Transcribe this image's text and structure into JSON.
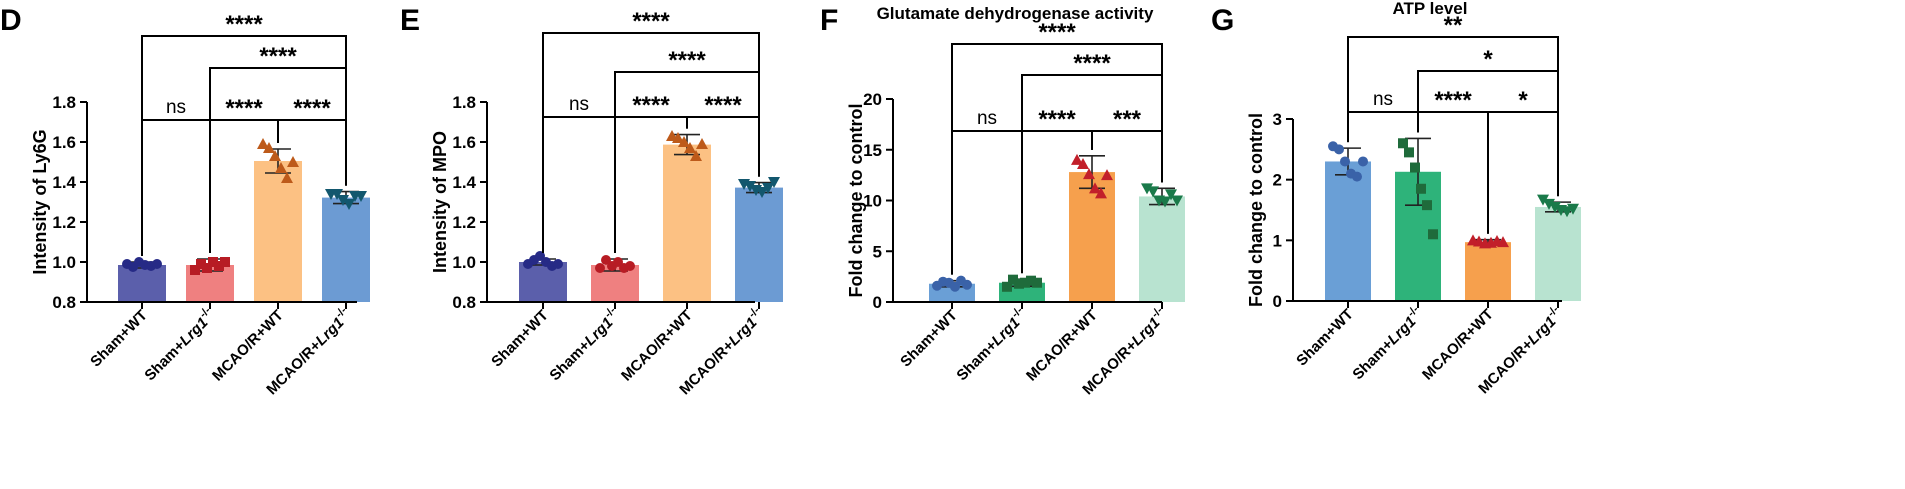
{
  "figure": {
    "panels": [
      "D",
      "E",
      "F",
      "G"
    ]
  },
  "chart_data": [
    {
      "panel": "D",
      "type": "bar",
      "title": "",
      "ylabel": "Intensity of Ly6G",
      "ylim": [
        0.8,
        1.8
      ],
      "yticks": [
        "0.8",
        "1.0",
        "1.2",
        "1.4",
        "1.6",
        "1.8"
      ],
      "categories": [
        {
          "main": "Sham+WT",
          "gene": "",
          "sup": ""
        },
        {
          "main": "Sham+",
          "gene": "Lrg1",
          "sup": "-/-"
        },
        {
          "main": "MCAO/R+WT",
          "gene": "",
          "sup": ""
        },
        {
          "main": "MCAO/R+",
          "gene": "Lrg1",
          "sup": "-/-"
        }
      ],
      "values": [
        0.985,
        0.985,
        1.505,
        1.322
      ],
      "errors": [
        0.015,
        0.03,
        0.06,
        0.03
      ],
      "bar_colors": [
        "#5b5fab",
        "#ef8080",
        "#fcc183",
        "#6c9bd3"
      ],
      "point_colors": [
        "#262a86",
        "#b71c24",
        "#bd5a1a",
        "#12576e"
      ],
      "markers": [
        "circle",
        "square",
        "triangle-up",
        "triangle-down"
      ],
      "points": [
        [
          0.99,
          0.975,
          1.0,
          0.985,
          0.98,
          0.99
        ],
        [
          0.96,
          0.99,
          0.97,
          1.0,
          0.98,
          1.0
        ],
        [
          1.59,
          1.57,
          1.53,
          1.47,
          1.42,
          1.5
        ],
        [
          1.34,
          1.34,
          1.31,
          1.29,
          1.33,
          1.33
        ]
      ],
      "comparisons": [
        {
          "from": 0,
          "to": 3,
          "label": "****"
        },
        {
          "from": 1,
          "to": 3,
          "label": "****"
        },
        {
          "from": 0,
          "to": 1,
          "label": "ns"
        },
        {
          "from": 1,
          "to": 2,
          "label": "****"
        },
        {
          "from": 2,
          "to": 3,
          "label": "****"
        }
      ]
    },
    {
      "panel": "E",
      "type": "bar",
      "title": "",
      "ylabel": "Intensity of MPO",
      "ylim": [
        0.8,
        1.8
      ],
      "yticks": [
        "0.8",
        "1.0",
        "1.2",
        "1.4",
        "1.6",
        "1.8"
      ],
      "categories": [
        {
          "main": "Sham+WT",
          "gene": "",
          "sup": ""
        },
        {
          "main": "Sham+",
          "gene": "Lrg1",
          "sup": "-/-"
        },
        {
          "main": "MCAO/R+WT",
          "gene": "",
          "sup": ""
        },
        {
          "main": "MCAO/R+",
          "gene": "Lrg1",
          "sup": "-/-"
        }
      ],
      "values": [
        1.0,
        0.985,
        1.587,
        1.372
      ],
      "errors": [
        0.015,
        0.03,
        0.05,
        0.025
      ],
      "bar_colors": [
        "#5b5fab",
        "#ef8080",
        "#fcc183",
        "#6c9bd3"
      ],
      "point_colors": [
        "#262a86",
        "#b71c24",
        "#bd5a1a",
        "#12576e"
      ],
      "markers": [
        "circle",
        "circle",
        "triangle-up",
        "triangle-down"
      ],
      "points": [
        [
          0.99,
          1.01,
          1.03,
          1.0,
          0.98,
          0.99
        ],
        [
          0.97,
          1.01,
          0.98,
          1.0,
          0.97,
          0.98
        ],
        [
          1.63,
          1.62,
          1.6,
          1.57,
          1.53,
          1.59
        ],
        [
          1.39,
          1.38,
          1.36,
          1.35,
          1.37,
          1.4
        ]
      ],
      "comparisons": [
        {
          "from": 0,
          "to": 3,
          "label": "****"
        },
        {
          "from": 1,
          "to": 3,
          "label": "****"
        },
        {
          "from": 0,
          "to": 1,
          "label": "ns"
        },
        {
          "from": 1,
          "to": 2,
          "label": "****"
        },
        {
          "from": 2,
          "to": 3,
          "label": "****"
        }
      ]
    },
    {
      "panel": "F",
      "type": "bar",
      "title": "Glutamate dehydrogenase activity",
      "ylabel": "Fold change to control",
      "ylim": [
        0,
        20
      ],
      "yticks": [
        "0",
        "5",
        "10",
        "15",
        "20"
      ],
      "categories": [
        {
          "main": "Sham+WT",
          "gene": "",
          "sup": ""
        },
        {
          "main": "Sham+",
          "gene": "Lrg1",
          "sup": "-/-"
        },
        {
          "main": "MCAO/R+WT",
          "gene": "",
          "sup": ""
        },
        {
          "main": "MCAO/R+",
          "gene": "Lrg1",
          "sup": "-/-"
        }
      ],
      "values": [
        1.8,
        1.9,
        12.8,
        10.4
      ],
      "errors": [
        0.3,
        0.35,
        1.6,
        0.8
      ],
      "bar_colors": [
        "#6a9fd6",
        "#2eb37a",
        "#f6a04d",
        "#b8e3d0"
      ],
      "point_colors": [
        "#3a62a8",
        "#1f6b3b",
        "#c21f2a",
        "#1a7a4a"
      ],
      "markers": [
        "circle",
        "square",
        "triangle-up",
        "triangle-down"
      ],
      "points": [
        [
          1.6,
          2.0,
          1.9,
          1.5,
          2.1,
          1.7
        ],
        [
          1.5,
          2.2,
          1.8,
          1.9,
          2.1,
          1.9
        ],
        [
          14.0,
          13.6,
          12.6,
          11.2,
          10.7,
          12.5
        ],
        [
          11.2,
          10.9,
          10.0,
          9.9,
          10.6,
          10.0
        ]
      ],
      "comparisons": [
        {
          "from": 0,
          "to": 3,
          "label": "****"
        },
        {
          "from": 1,
          "to": 3,
          "label": "****"
        },
        {
          "from": 0,
          "to": 1,
          "label": "ns"
        },
        {
          "from": 1,
          "to": 2,
          "label": "****"
        },
        {
          "from": 2,
          "to": 3,
          "label": "***"
        }
      ]
    },
    {
      "panel": "G",
      "type": "bar",
      "title": "ATP level",
      "ylabel": "Fold change to control",
      "ylim": [
        0,
        3
      ],
      "yticks": [
        "0",
        "1",
        "2",
        "3"
      ],
      "categories": [
        {
          "main": "Sham+WT",
          "gene": "",
          "sup": ""
        },
        {
          "main": "Sham+",
          "gene": "Lrg1",
          "sup": "-/-"
        },
        {
          "main": "MCAO/R+WT",
          "gene": "",
          "sup": ""
        },
        {
          "main": "MCAO/R+",
          "gene": "Lrg1",
          "sup": "-/-"
        }
      ],
      "values": [
        2.3,
        2.13,
        0.97,
        1.55
      ],
      "errors": [
        0.22,
        0.55,
        0.04,
        0.08
      ],
      "bar_colors": [
        "#6a9fd6",
        "#2eb37a",
        "#f6a04d",
        "#b8e3d0"
      ],
      "point_colors": [
        "#3a62a8",
        "#1f6b3b",
        "#c21f2a",
        "#1a7a4a"
      ],
      "markers": [
        "circle",
        "square",
        "triangle-up",
        "triangle-down"
      ],
      "points": [
        [
          2.55,
          2.5,
          2.3,
          2.1,
          2.05,
          2.3
        ],
        [
          2.6,
          2.45,
          2.2,
          1.85,
          1.58,
          1.1
        ],
        [
          1.0,
          0.98,
          0.95,
          0.96,
          0.99,
          0.97
        ],
        [
          1.67,
          1.6,
          1.55,
          1.5,
          1.48,
          1.52
        ]
      ],
      "comparisons": [
        {
          "from": 0,
          "to": 3,
          "label": "**"
        },
        {
          "from": 1,
          "to": 3,
          "label": "*"
        },
        {
          "from": 0,
          "to": 1,
          "label": "ns"
        },
        {
          "from": 1,
          "to": 2,
          "label": "****"
        },
        {
          "from": 2,
          "to": 3,
          "label": "*"
        }
      ]
    }
  ]
}
